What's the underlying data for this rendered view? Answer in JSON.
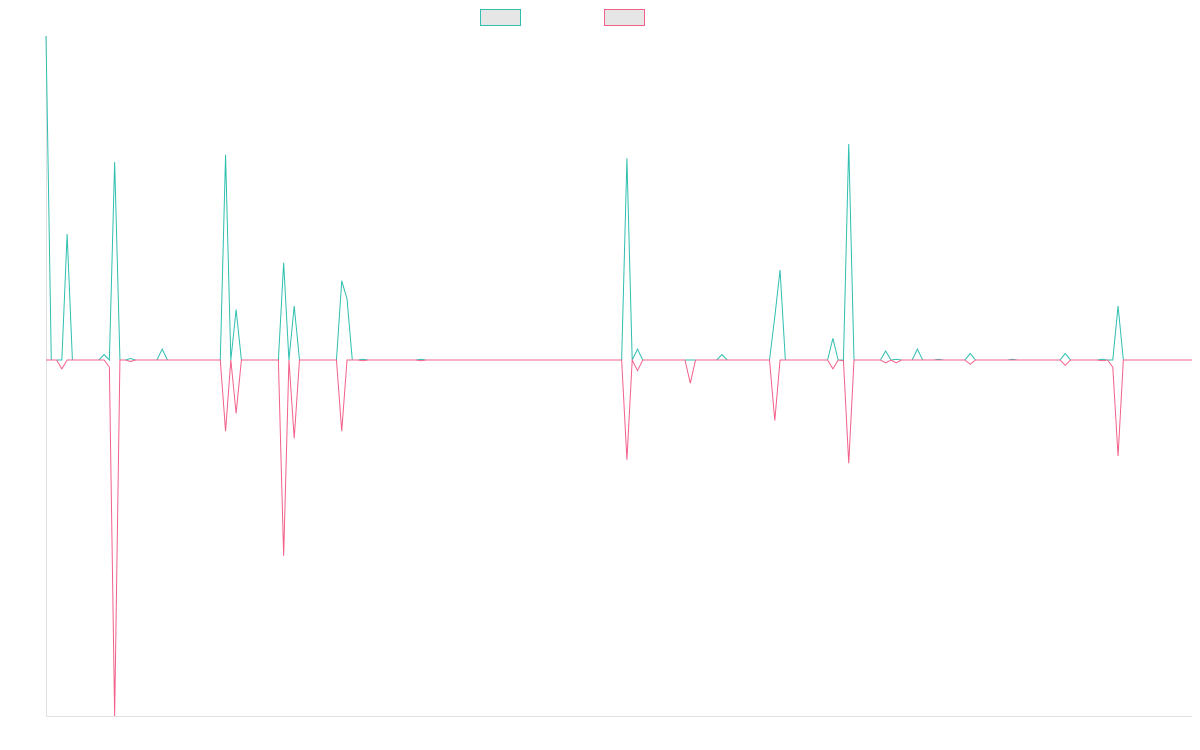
{
  "chart_data": {
    "type": "line",
    "title": "",
    "xlabel": "",
    "ylabel": "",
    "legend": {
      "placement": "top-center",
      "show_text": false
    },
    "grid": false,
    "x_count": 218,
    "ylim": [
      -1.0,
      0.9
    ],
    "colors": {
      "series_1": "#2ebfb0",
      "series_2": "#f2608a",
      "legend_fill": "#e6e6e6",
      "axis": "#e0e0e0"
    },
    "series": [
      {
        "key": "series_1",
        "name": "",
        "baseline": 0,
        "points": [
          [
            0,
            0.9
          ],
          [
            1,
            0.0
          ],
          [
            3,
            0.0
          ],
          [
            4,
            0.35
          ],
          [
            5,
            0.0
          ],
          [
            10,
            0.0
          ],
          [
            11,
            0.015
          ],
          [
            12,
            0.0
          ],
          [
            13,
            0.55
          ],
          [
            14,
            0.0
          ],
          [
            15,
            0.0
          ],
          [
            16,
            0.004
          ],
          [
            17,
            0.0
          ],
          [
            21,
            0.0
          ],
          [
            22,
            0.03
          ],
          [
            23,
            0.0
          ],
          [
            33,
            0.0
          ],
          [
            34,
            0.57
          ],
          [
            35,
            0.0
          ],
          [
            36,
            0.14
          ],
          [
            37,
            0.0
          ],
          [
            44,
            0.0
          ],
          [
            45,
            0.27
          ],
          [
            46,
            0.0
          ],
          [
            47,
            0.15
          ],
          [
            48,
            0.0
          ],
          [
            55,
            0.0
          ],
          [
            56,
            0.22
          ],
          [
            57,
            0.17
          ],
          [
            58,
            0.0
          ],
          [
            59,
            0.0
          ],
          [
            60,
            0.002
          ],
          [
            61,
            0.0
          ],
          [
            70,
            0.0
          ],
          [
            71,
            0.002
          ],
          [
            72,
            0.0
          ],
          [
            109,
            0.0
          ],
          [
            110,
            0.56
          ],
          [
            111,
            0.0
          ],
          [
            112,
            0.03
          ],
          [
            113,
            0.0
          ],
          [
            127,
            0.0
          ],
          [
            128,
            0.015
          ],
          [
            129,
            0.0
          ],
          [
            137,
            0.0
          ],
          [
            138,
            0.12
          ],
          [
            139,
            0.25
          ],
          [
            140,
            0.0
          ],
          [
            148,
            0.0
          ],
          [
            149,
            0.06
          ],
          [
            150,
            0.0
          ],
          [
            151,
            0.0
          ],
          [
            152,
            0.6
          ],
          [
            153,
            0.0
          ],
          [
            158,
            0.0
          ],
          [
            159,
            0.025
          ],
          [
            160,
            0.0
          ],
          [
            161,
            0.002
          ],
          [
            162,
            0.0
          ],
          [
            164,
            0.0
          ],
          [
            165,
            0.03
          ],
          [
            166,
            0.0
          ],
          [
            168,
            0.0
          ],
          [
            169,
            0.002
          ],
          [
            170,
            0.0
          ],
          [
            174,
            0.0
          ],
          [
            175,
            0.018
          ],
          [
            176,
            0.0
          ],
          [
            182,
            0.0
          ],
          [
            183,
            0.002
          ],
          [
            184,
            0.0
          ],
          [
            192,
            0.0
          ],
          [
            193,
            0.018
          ],
          [
            194,
            0.0
          ],
          [
            199,
            0.0
          ],
          [
            200,
            0.002
          ],
          [
            201,
            0.0
          ],
          [
            202,
            0.0
          ],
          [
            203,
            0.15
          ],
          [
            204,
            0.0
          ],
          [
            217,
            0.0
          ]
        ]
      },
      {
        "key": "series_2",
        "name": "",
        "baseline": 0,
        "points": [
          [
            0,
            0.0
          ],
          [
            2,
            0.0
          ],
          [
            3,
            -0.025
          ],
          [
            4,
            0.0
          ],
          [
            11,
            0.0
          ],
          [
            12,
            -0.02
          ],
          [
            13,
            -1.0
          ],
          [
            14,
            0.0
          ],
          [
            15,
            0.0
          ],
          [
            16,
            -0.004
          ],
          [
            17,
            0.0
          ],
          [
            33,
            0.0
          ],
          [
            34,
            -0.2
          ],
          [
            35,
            0.0
          ],
          [
            36,
            -0.15
          ],
          [
            37,
            0.0
          ],
          [
            44,
            0.0
          ],
          [
            45,
            -0.55
          ],
          [
            46,
            0.0
          ],
          [
            47,
            -0.22
          ],
          [
            48,
            0.0
          ],
          [
            55,
            0.0
          ],
          [
            56,
            -0.2
          ],
          [
            57,
            0.0
          ],
          [
            59,
            0.0
          ],
          [
            60,
            -0.002
          ],
          [
            61,
            0.0
          ],
          [
            70,
            0.0
          ],
          [
            71,
            -0.002
          ],
          [
            72,
            0.0
          ],
          [
            109,
            0.0
          ],
          [
            110,
            -0.28
          ],
          [
            111,
            0.0
          ],
          [
            112,
            -0.03
          ],
          [
            113,
            0.0
          ],
          [
            121,
            0.0
          ],
          [
            122,
            -0.065
          ],
          [
            123,
            0.0
          ],
          [
            137,
            0.0
          ],
          [
            138,
            -0.17
          ],
          [
            139,
            0.0
          ],
          [
            148,
            0.0
          ],
          [
            149,
            -0.025
          ],
          [
            150,
            0.0
          ],
          [
            151,
            -0.002
          ],
          [
            152,
            -0.29
          ],
          [
            153,
            0.0
          ],
          [
            158,
            0.0
          ],
          [
            159,
            -0.008
          ],
          [
            160,
            0.0
          ],
          [
            161,
            -0.008
          ],
          [
            162,
            0.0
          ],
          [
            174,
            0.0
          ],
          [
            175,
            -0.012
          ],
          [
            176,
            0.0
          ],
          [
            192,
            0.0
          ],
          [
            193,
            -0.015
          ],
          [
            194,
            0.0
          ],
          [
            199,
            0.0
          ],
          [
            200,
            -0.002
          ],
          [
            201,
            0.0
          ],
          [
            202,
            -0.02
          ],
          [
            203,
            -0.27
          ],
          [
            204,
            0.0
          ],
          [
            217,
            0.0
          ]
        ]
      }
    ]
  }
}
